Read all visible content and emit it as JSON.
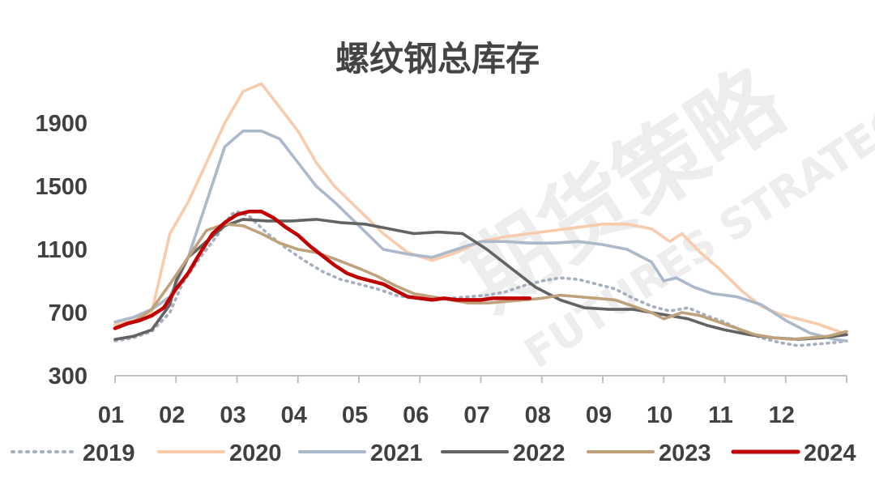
{
  "chart_data": {
    "type": "line",
    "title": "螺纹钢总库存",
    "xlabel": "",
    "ylabel": "",
    "x_ticks": [
      "01",
      "02",
      "03",
      "04",
      "05",
      "06",
      "07",
      "08",
      "09",
      "10",
      "11",
      "12"
    ],
    "y_ticks": [
      300,
      700,
      1100,
      1500,
      1900
    ],
    "ylim": [
      300,
      2100
    ],
    "xlim": [
      1,
      13
    ],
    "grid": false,
    "legend_position": "bottom",
    "series": [
      {
        "name": "2019",
        "color": "#a6aebf",
        "style": "dotted",
        "x": [
          1,
          1.3,
          1.6,
          1.9,
          2.1,
          2.4,
          2.7,
          2.9,
          3.0,
          3.2,
          3.5,
          3.8,
          4.1,
          4.4,
          4.7,
          5.0,
          5.3,
          5.6,
          5.9,
          6.2,
          6.5,
          6.8,
          7.1,
          7.4,
          7.7,
          8.0,
          8.3,
          8.6,
          8.9,
          9.2,
          9.5,
          9.8,
          10.1,
          10.4,
          10.7,
          11.0,
          11.3,
          11.6,
          11.9,
          12.2,
          12.5,
          12.8,
          13.0
        ],
        "y": [
          520,
          540,
          580,
          700,
          880,
          1050,
          1200,
          1320,
          1340,
          1310,
          1200,
          1110,
          1030,
          960,
          910,
          880,
          850,
          810,
          790,
          780,
          790,
          800,
          810,
          830,
          870,
          900,
          920,
          910,
          880,
          850,
          790,
          740,
          710,
          730,
          680,
          640,
          580,
          540,
          510,
          490,
          500,
          510,
          520
        ]
      },
      {
        "name": "2020",
        "color": "#f8cbad",
        "style": "solid",
        "x": [
          1,
          1.3,
          1.6,
          1.9,
          2.2,
          2.5,
          2.8,
          3.1,
          3.4,
          3.7,
          4.0,
          4.3,
          4.6,
          5.0,
          5.4,
          5.8,
          6.2,
          6.6,
          7.0,
          7.4,
          7.8,
          8.2,
          8.6,
          9.0,
          9.4,
          9.8,
          10.1,
          10.3,
          10.6,
          10.9,
          11.3,
          11.6,
          11.9,
          12.2,
          12.5,
          12.8,
          13.0
        ],
        "y": [
          620,
          650,
          700,
          1200,
          1400,
          1650,
          1900,
          2100,
          2150,
          2000,
          1850,
          1650,
          1500,
          1350,
          1200,
          1080,
          1030,
          1080,
          1150,
          1180,
          1200,
          1220,
          1240,
          1260,
          1260,
          1230,
          1150,
          1200,
          1080,
          980,
          830,
          740,
          690,
          660,
          630,
          590,
          560
        ]
      },
      {
        "name": "2021",
        "color": "#acb9ca",
        "style": "solid",
        "x": [
          1,
          1.3,
          1.6,
          1.9,
          2.2,
          2.5,
          2.8,
          3.1,
          3.4,
          3.7,
          4.0,
          4.3,
          4.6,
          5.0,
          5.4,
          5.8,
          6.2,
          6.6,
          7.0,
          7.4,
          7.8,
          8.2,
          8.6,
          9.0,
          9.4,
          9.8,
          10.0,
          10.2,
          10.5,
          10.8,
          11.2,
          11.6,
          12.0,
          12.4,
          12.8,
          13.0
        ],
        "y": [
          640,
          670,
          720,
          800,
          1050,
          1400,
          1750,
          1850,
          1850,
          1800,
          1650,
          1500,
          1400,
          1250,
          1100,
          1070,
          1050,
          1100,
          1150,
          1150,
          1140,
          1140,
          1150,
          1130,
          1100,
          1020,
          900,
          920,
          860,
          820,
          800,
          750,
          650,
          570,
          530,
          520
        ]
      },
      {
        "name": "2022",
        "color": "#636363",
        "style": "solid",
        "x": [
          1,
          1.3,
          1.6,
          1.9,
          2.0,
          2.2,
          2.5,
          2.8,
          3.1,
          3.5,
          3.9,
          4.3,
          4.7,
          5.1,
          5.5,
          5.9,
          6.3,
          6.7,
          7.1,
          7.5,
          7.9,
          8.3,
          8.7,
          9.1,
          9.5,
          9.8,
          10.1,
          10.4,
          10.7,
          11.0,
          11.4,
          11.8,
          12.2,
          12.6,
          13.0
        ],
        "y": [
          530,
          550,
          590,
          750,
          900,
          1050,
          1150,
          1250,
          1290,
          1280,
          1280,
          1290,
          1270,
          1260,
          1230,
          1200,
          1210,
          1200,
          1100,
          980,
          860,
          780,
          730,
          720,
          720,
          700,
          680,
          660,
          620,
          590,
          560,
          540,
          530,
          540,
          560
        ]
      },
      {
        "name": "2023",
        "color": "#bfa27c",
        "style": "solid",
        "x": [
          1,
          1.3,
          1.6,
          1.9,
          2.2,
          2.5,
          2.8,
          3.1,
          3.4,
          3.7,
          4.0,
          4.3,
          4.6,
          5.0,
          5.3,
          5.6,
          5.9,
          6.2,
          6.5,
          6.8,
          7.1,
          7.4,
          7.7,
          8.0,
          8.3,
          8.6,
          8.9,
          9.2,
          9.5,
          9.8,
          10.0,
          10.3,
          10.6,
          10.9,
          11.2,
          11.5,
          11.8,
          12.1,
          12.4,
          12.7,
          13.0
        ],
        "y": [
          600,
          640,
          720,
          880,
          1050,
          1220,
          1260,
          1250,
          1200,
          1140,
          1100,
          1080,
          1040,
          980,
          930,
          870,
          820,
          800,
          780,
          760,
          760,
          770,
          780,
          790,
          810,
          800,
          790,
          780,
          740,
          700,
          660,
          700,
          680,
          640,
          600,
          560,
          540,
          530,
          540,
          550,
          580
        ]
      },
      {
        "name": "2024",
        "color": "#c00000",
        "style": "solid",
        "x": [
          1,
          1.2,
          1.4,
          1.6,
          1.8,
          2.0,
          2.2,
          2.4,
          2.6,
          2.8,
          3.0,
          3.2,
          3.4,
          3.6,
          3.8,
          4.0,
          4.2,
          4.4,
          4.6,
          4.8,
          5.0,
          5.2,
          5.4,
          5.6,
          5.8,
          6.0,
          6.2,
          6.4,
          6.6,
          6.8,
          7.0,
          7.2,
          7.4,
          7.6,
          7.8
        ],
        "y": [
          600,
          630,
          650,
          680,
          730,
          850,
          950,
          1080,
          1200,
          1270,
          1320,
          1340,
          1340,
          1300,
          1240,
          1190,
          1120,
          1060,
          1000,
          950,
          920,
          900,
          880,
          840,
          800,
          790,
          780,
          790,
          780,
          780,
          780,
          790,
          790,
          790,
          790
        ]
      }
    ]
  },
  "watermark": {
    "cn": "期货策略",
    "en": "FUTURES STRATEGY"
  }
}
